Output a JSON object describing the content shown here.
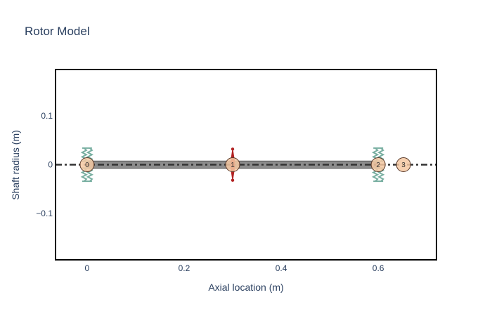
{
  "chart_data": {
    "type": "scatter",
    "title": "Rotor Model",
    "xlabel": "Axial location (m)",
    "ylabel": "Shaft radius (m)",
    "xlim": [
      -0.065,
      0.72
    ],
    "ylim": [
      -0.195,
      0.195
    ],
    "x_ticks": [
      {
        "value": 0,
        "label": "0"
      },
      {
        "value": 0.2,
        "label": "0.2"
      },
      {
        "value": 0.4,
        "label": "0.4"
      },
      {
        "value": 0.6,
        "label": "0.6"
      }
    ],
    "y_ticks": [
      {
        "value": 0.1,
        "label": "0.1"
      },
      {
        "value": 0,
        "label": "0"
      },
      {
        "value": -0.1,
        "label": "−0.1"
      }
    ],
    "grid": false,
    "shaft": {
      "start": 0,
      "end": 0.6,
      "outer_radius": 0.0075,
      "color": "#8c8c8c"
    },
    "centerline": {
      "color": "#333333"
    },
    "nodes": [
      {
        "x": 0,
        "label": "0"
      },
      {
        "x": 0.3,
        "label": "1"
      },
      {
        "x": 0.6,
        "label": "2"
      },
      {
        "x": 0.652,
        "label": "3"
      }
    ],
    "node_color": "#f5c8a2",
    "disks": [
      {
        "x": 0.3,
        "radius": 0.032
      }
    ],
    "disk_color": "#b22222",
    "bearings": [
      {
        "x": 0,
        "inner": 0.007,
        "outer": 0.034
      },
      {
        "x": 0.6,
        "inner": 0.007,
        "outer": 0.034
      }
    ],
    "bearing_color": "#77aea0"
  }
}
